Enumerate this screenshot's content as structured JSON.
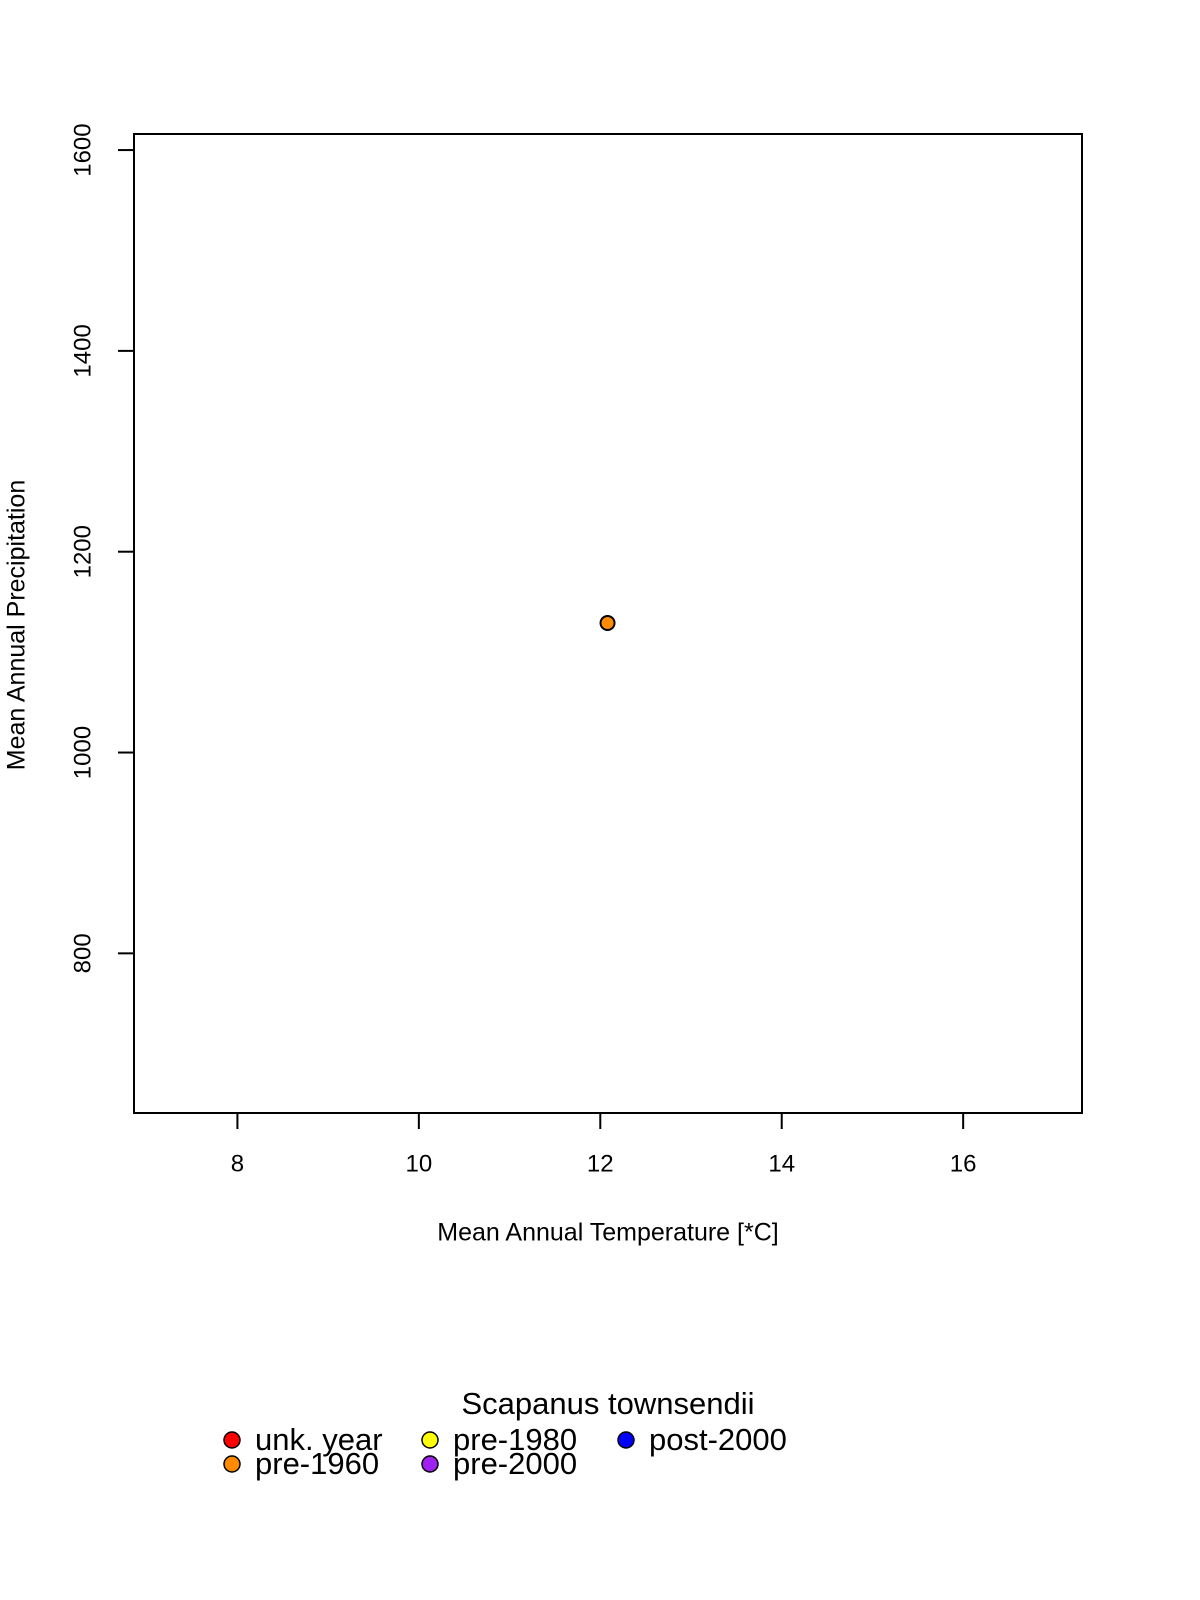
{
  "chart_data": {
    "type": "scatter",
    "x_label": "Mean Annual Temperature [*C]",
    "y_label": "Mean Annual Precipitation",
    "legend_title": "Scapanus townsendii",
    "xlim": [
      6.86,
      17.31
    ],
    "xticks": [
      8,
      10,
      12,
      14,
      16
    ],
    "ylim": [
      641,
      1616
    ],
    "yticks": [
      800,
      1000,
      1200,
      1400,
      1600
    ],
    "grid": false,
    "legend": "bottom",
    "series": [
      {
        "name": "unk. year",
        "color": "#ff0000",
        "x": [],
        "y": []
      },
      {
        "name": "pre-1960",
        "color": "#ff8c00",
        "x": [
          12.08
        ],
        "y": [
          1129
        ]
      },
      {
        "name": "pre-1980",
        "color": "#ffff00",
        "x": [],
        "y": []
      },
      {
        "name": "pre-2000",
        "color": "#a020f0",
        "x": [],
        "y": []
      },
      {
        "name": "post-2000",
        "color": "#0000ff",
        "x": [],
        "y": []
      }
    ]
  }
}
